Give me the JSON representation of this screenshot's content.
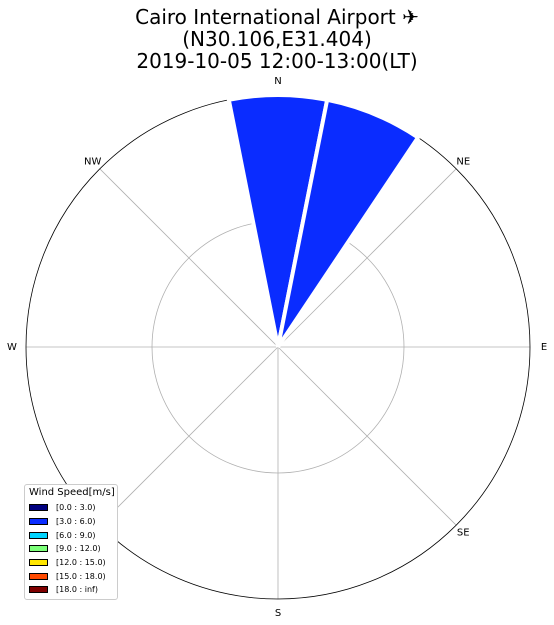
{
  "title": {
    "line1": "Cairo International Airport",
    "icon": "airplane-icon",
    "icon_glyph": "✈",
    "line2": "(N30.106,E31.404)",
    "line3": "2019-10-05 12:00-13:00(LT)"
  },
  "chart_data": {
    "type": "windrose",
    "direction_labels": [
      "N",
      "NE",
      "E",
      "SE",
      "S",
      "W",
      "NW"
    ],
    "radial_gridlines": [
      50,
      100
    ],
    "r_max": 100,
    "bars": [
      {
        "center_deg": 0,
        "width_deg": 22.5,
        "speed_bin": "[3.0 : 6.0)",
        "value": 100
      },
      {
        "center_deg": 22.5,
        "width_deg": 22.5,
        "speed_bin": "[3.0 : 6.0)",
        "value": 100
      }
    ],
    "bar_color": "#0a2cff",
    "legend": {
      "title": "Wind Speed[m/s]",
      "placement": "bottom-left",
      "items": [
        {
          "label": "[0.0 : 3.0)",
          "color": "#00007f"
        },
        {
          "label": "[3.0 : 6.0)",
          "color": "#0a2cff"
        },
        {
          "label": "[6.0 : 9.0)",
          "color": "#00d4ff"
        },
        {
          "label": "[9.0 : 12.0)",
          "color": "#7cff79"
        },
        {
          "label": "[12.0 : 15.0)",
          "color": "#ffe600"
        },
        {
          "label": "[15.0 : 18.0)",
          "color": "#ff4a00"
        },
        {
          "label": "[18.0 : inf)",
          "color": "#7f0000"
        }
      ]
    }
  }
}
